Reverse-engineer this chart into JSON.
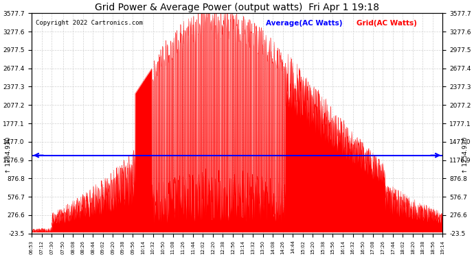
{
  "title": "Grid Power & Average Power (output watts)  Fri Apr 1 19:18",
  "copyright": "Copyright 2022 Cartronics.com",
  "legend_avg": "Average(AC Watts)",
  "legend_grid": "Grid(AC Watts)",
  "average_value": 1254.93,
  "ymin": -23.5,
  "ymax": 3577.7,
  "yticks": [
    -23.5,
    276.6,
    576.7,
    876.8,
    1176.9,
    1477.0,
    1777.1,
    2077.2,
    2377.3,
    2677.4,
    2977.5,
    3277.6,
    3577.7
  ],
  "bg_color": "#ffffff",
  "grid_color": "#cccccc",
  "fill_color": "#ff0000",
  "line_color": "#ff0000",
  "avg_line_color": "#0000ff",
  "title_color": "#000000",
  "copyright_color": "#000000",
  "legend_avg_color": "#0000ff",
  "legend_grid_color": "#ff0000",
  "xtick_labels": [
    "06:53",
    "07:12",
    "07:30",
    "07:50",
    "08:08",
    "08:26",
    "08:44",
    "09:02",
    "09:20",
    "09:38",
    "09:56",
    "10:14",
    "10:32",
    "10:50",
    "11:08",
    "11:26",
    "11:44",
    "12:02",
    "12:20",
    "12:38",
    "12:56",
    "13:14",
    "13:32",
    "13:50",
    "14:08",
    "14:26",
    "14:44",
    "15:02",
    "15:20",
    "15:38",
    "15:56",
    "16:14",
    "16:32",
    "16:50",
    "17:08",
    "17:26",
    "17:44",
    "18:02",
    "18:20",
    "18:38",
    "18:56",
    "19:14"
  ]
}
